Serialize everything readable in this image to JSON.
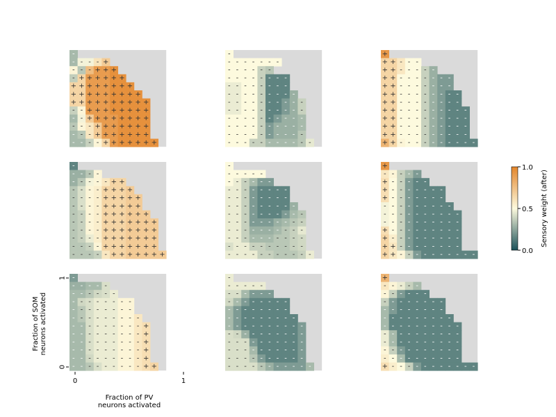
{
  "chart_data": {
    "type": "heatmap",
    "layout": {
      "rows": 3,
      "cols": 3
    },
    "grid_size": 12,
    "missing_color": "#dadada",
    "colorbar": {
      "label": "Sensory weight (after)",
      "range": [
        0,
        1
      ],
      "ticks": [
        "0.0",
        "0.5",
        "1.0"
      ],
      "colors": [
        "#1b5159",
        "#fdfade",
        "#e3852b"
      ]
    },
    "xaxis": {
      "label_lines": [
        "Fraction of PV",
        "neurons activated"
      ],
      "tick_labels": [
        "0",
        "1"
      ]
    },
    "yaxis": {
      "label_lines": [
        "Fraction of SOM",
        "neurons activated"
      ],
      "tick_labels": [
        "0",
        "1"
      ]
    },
    "panels": [
      {
        "rows": [
          "o31",
          "o31 a48 a48 b60 c70",
          "a52 o35 e76 h90 h90 i95",
          "o37 d66 h90 h90 h90 i95 i95",
          "d66 d66 h90 h90 h90 i95 i95 i95",
          "d66 d66 h90 h90 h90 i95 i95 i95 i95",
          "d66 d66 h90 h90 h90 i95 i95 i95 i95 i95",
          "o38 a52 h90 h90 h90 i95 i95 i95 i95 i95",
          "o31 a48 c70 h90 h90 h90 i95 i95 i95 i95",
          "o35 a52 b58 c70 h90 h90 i95 i95 i95 i95",
          "o31 o35 b58 c70 h90 h90 i95 i95 i95 i95",
          "o31 o31 o38 a52 d66 h90 i95 i95 i95 i95 i95"
        ]
      },
      {
        "rows": [
          "b50",
          "b50 b50 b50 b50 b50 b50 b50",
          "b50 b50 b50 b50 o38 o35",
          "b50 b50 b50 b50 o38 o15 o15 o15",
          "a46 a46 b50 b50 o38 o15 o15 o15",
          "a46 a46 b50 b50 o38 o15 o15 o15 o28",
          "a46 a46 b50 b50 o38 o15 o15 o22 o28 o38",
          "a46 a46 b50 b50 o38 o15 o15 o22 o28 o38",
          "b50 b50 b50 b50 o38 o15 o22 o28 o28 o31",
          "b50 b50 b50 b50 o38 o22 o28 o28 o28 o31",
          "b50 b50 b50 b50 o38 o22 o28 o28 o28 o35",
          "b50 b50 b50 o38 o38 o31 o31 o31 o31 o35 o45"
        ]
      },
      {
        "rows": [
          "h92",
          "d66 d66 b58 b50 b50",
          "d66 d66 b58 b50 b50 o38 o28",
          "d66 d66 b50 b50 b50 o38 o28 o22 o22",
          "d66 d66 b50 b50 b50 o38 o28 o22 o22",
          "d66 d66 b50 b50 b50 o38 o28 o22 o15 o15",
          "d66 d66 b50 b50 b50 o38 o28 o22 o15 o15",
          "d66 d66 b50 b50 b50 o38 o28 o22 o15 o15 o15",
          "d66 d66 b50 b50 b50 o38 o28 o22 o15 o15 o15",
          "d66 d66 b50 b50 b50 o38 o28 o22 o15 o15 o15",
          "d66 d66 b50 b50 b50 o38 o28 o22 o15 o15 o15",
          "h80 d66 b52 b50 b50 o38 o28 o22 o15 o15 o15 o15"
        ]
      },
      {
        "rows": [
          "o15",
          "o28 o28 o35 a52",
          "o28 o35 a48 a52 b58 c66 c66",
          "o35 a42 a52 b55 c66 c66 c66 d70",
          "o35 a42 a52 b55 c66 c66 c66 d70 d70",
          "o35 a42 a52 b55 c66 c66 c66 d70 d70",
          "o35 o38 a52 b55 c66 c66 c66 d70 d70 d70",
          "o35 o38 a52 b55 c66 c66 c66 d70 d70 d70 d70",
          "o35 o38 a52 b55 c66 c66 c66 d70 d70 d70 d70",
          "o35 o38 a46 b55 c66 c66 c66 d70 d70 d70 d70",
          "o35 o35 o38 a52 c66 c66 c66 d70 d70 d70 d70",
          "o35 o35 o35 o38 b58 c66 c66 d70 d70 d70 d70 d70"
        ]
      },
      {
        "rows": [
          "b50",
          "b50 b50 b50 b50 b50",
          "b50 a46 o38 o31 o22 o22",
          "a46 a46 o38 o22 o15 o15 o15 o15",
          "a46 a46 o38 o22 o15 o15 o15 o15",
          "a46 a46 o38 o22 o15 o15 o15 o15 o28",
          "a46 a46 o38 o22 o15 o15 o15 o22 o31 o35",
          "a46 a46 o38 o22 o22 o22 o28 o31 o35 o38",
          "a46 a46 o38 o28 o28 o28 o31 o35 o38 o45",
          "a46 a46 o38 o31 o31 o31 o35 o35 o38 o40",
          "a42 a46 a46 o38 o38 o35 o35 o35 o38 o40",
          "a46 a46 a46 a46 o38 o38 o35 o35 o35 o38 a46"
        ]
      },
      {
        "rows": [
          "h92",
          "b58 b52 o38 o31 o22",
          "d62 b50 o38 o22 o15 o15",
          "d62 b50 o38 o22 o15 o15 o15 o15",
          "d62 b50 o38 o22 o15 o15 o15 o15",
          "a48 b50 o38 o22 o15 o15 o15 o15 o15",
          "a48 b50 o38 o22 o15 o15 o15 o15 o15 o15",
          "a48 b50 o38 o22 o15 o15 o15 o15 o15 o15",
          "d62 b50 o38 o22 o15 o15 o15 o15 o15 o15",
          "d66 b55 o38 o22 o15 o15 o15 o15 o15 o15",
          "d66 c58 o38 o22 o15 o15 o15 o15 o15 o15",
          "d66 c58 b52 o38 o22 o15 o15 o15 o15 o15 o15 o15"
        ]
      },
      {
        "rows": [
          "o22",
          "o28 o28 o31 o31 a42",
          "o31 o31 o35 a40 a42 a46",
          "o31 a40 a42 a46 a46 a46 b52 b52",
          "o31 o35 a42 a46 a46 a46 b52 b52",
          "o31 o35 a42 a46 a46 a46 b52 b52 b58",
          "o31 o31 a42 a46 a46 a46 b52 b52 b58 c62",
          "o31 o31 a42 a46 a46 a46 b52 b52 b58 c62",
          "o31 o31 a42 a46 a46 a46 b52 b52 b58 c62",
          "o31 o31 a42 a46 a46 a46 b52 b52 b58 c62",
          "o31 o31 a40 a46 a46 a46 b52 b52 b58 c62",
          "o31 o31 o35 a42 a46 a46 b52 b52 b58 c62 d66"
        ]
      },
      {
        "rows": [
          "a46",
          "a46 a46 a46 a46 a46",
          "a42 a42 o31 o22 o22 o22",
          "a40 o31 o22 o15 o15 o15 o15 o15",
          "o31 o22 o15 o15 o15 o15 o15 o15",
          "o31 o22 o15 o15 o15 o15 o15 o15 o15",
          "o31 o22 o15 o15 o15 o15 o15 o15 o15 o22",
          "a42 a40 o28 o15 o15 o15 o15 o15 o15 o22",
          "a42 a42 a42 o22 o15 o15 o15 o15 o15 o22",
          "a42 a42 a42 o31 o15 o15 o15 o15 o15 o22",
          "a42 a42 a42 o35 o22 o15 o15 o15 o15 o22",
          "a42 a42 a42 a42 o35 o28 o22 o22 o22 o22 o31"
        ]
      },
      {
        "rows": [
          "h80",
          "b58 b52 a46 o38 o31",
          "b52 o38 o22 o15 o15 o15",
          "o38 o22 o15 o15 o15 o15 o15 o15",
          "o31 o22 o15 o15 o15 o15 o15 o15",
          "o31 o15 o15 o15 o15 o15 o15 o15 o15",
          "o31 o15 o15 o15 o15 o15 o15 o15 o15 o15",
          "a46 o31 o15 o15 o15 o15 o15 o15 o15 o15",
          "a46 o31 o15 o15 o15 o15 o15 o15 o15 o15",
          "b52 o38 o22 o15 o15 o15 o15 o15 o15 o15",
          "b55 b50 o31 o15 o15 o15 o15 o15 o15 o15",
          "d62 b55 b50 o38 o22 o15 o15 o15 o15 o15 o15 o15"
        ]
      }
    ]
  }
}
